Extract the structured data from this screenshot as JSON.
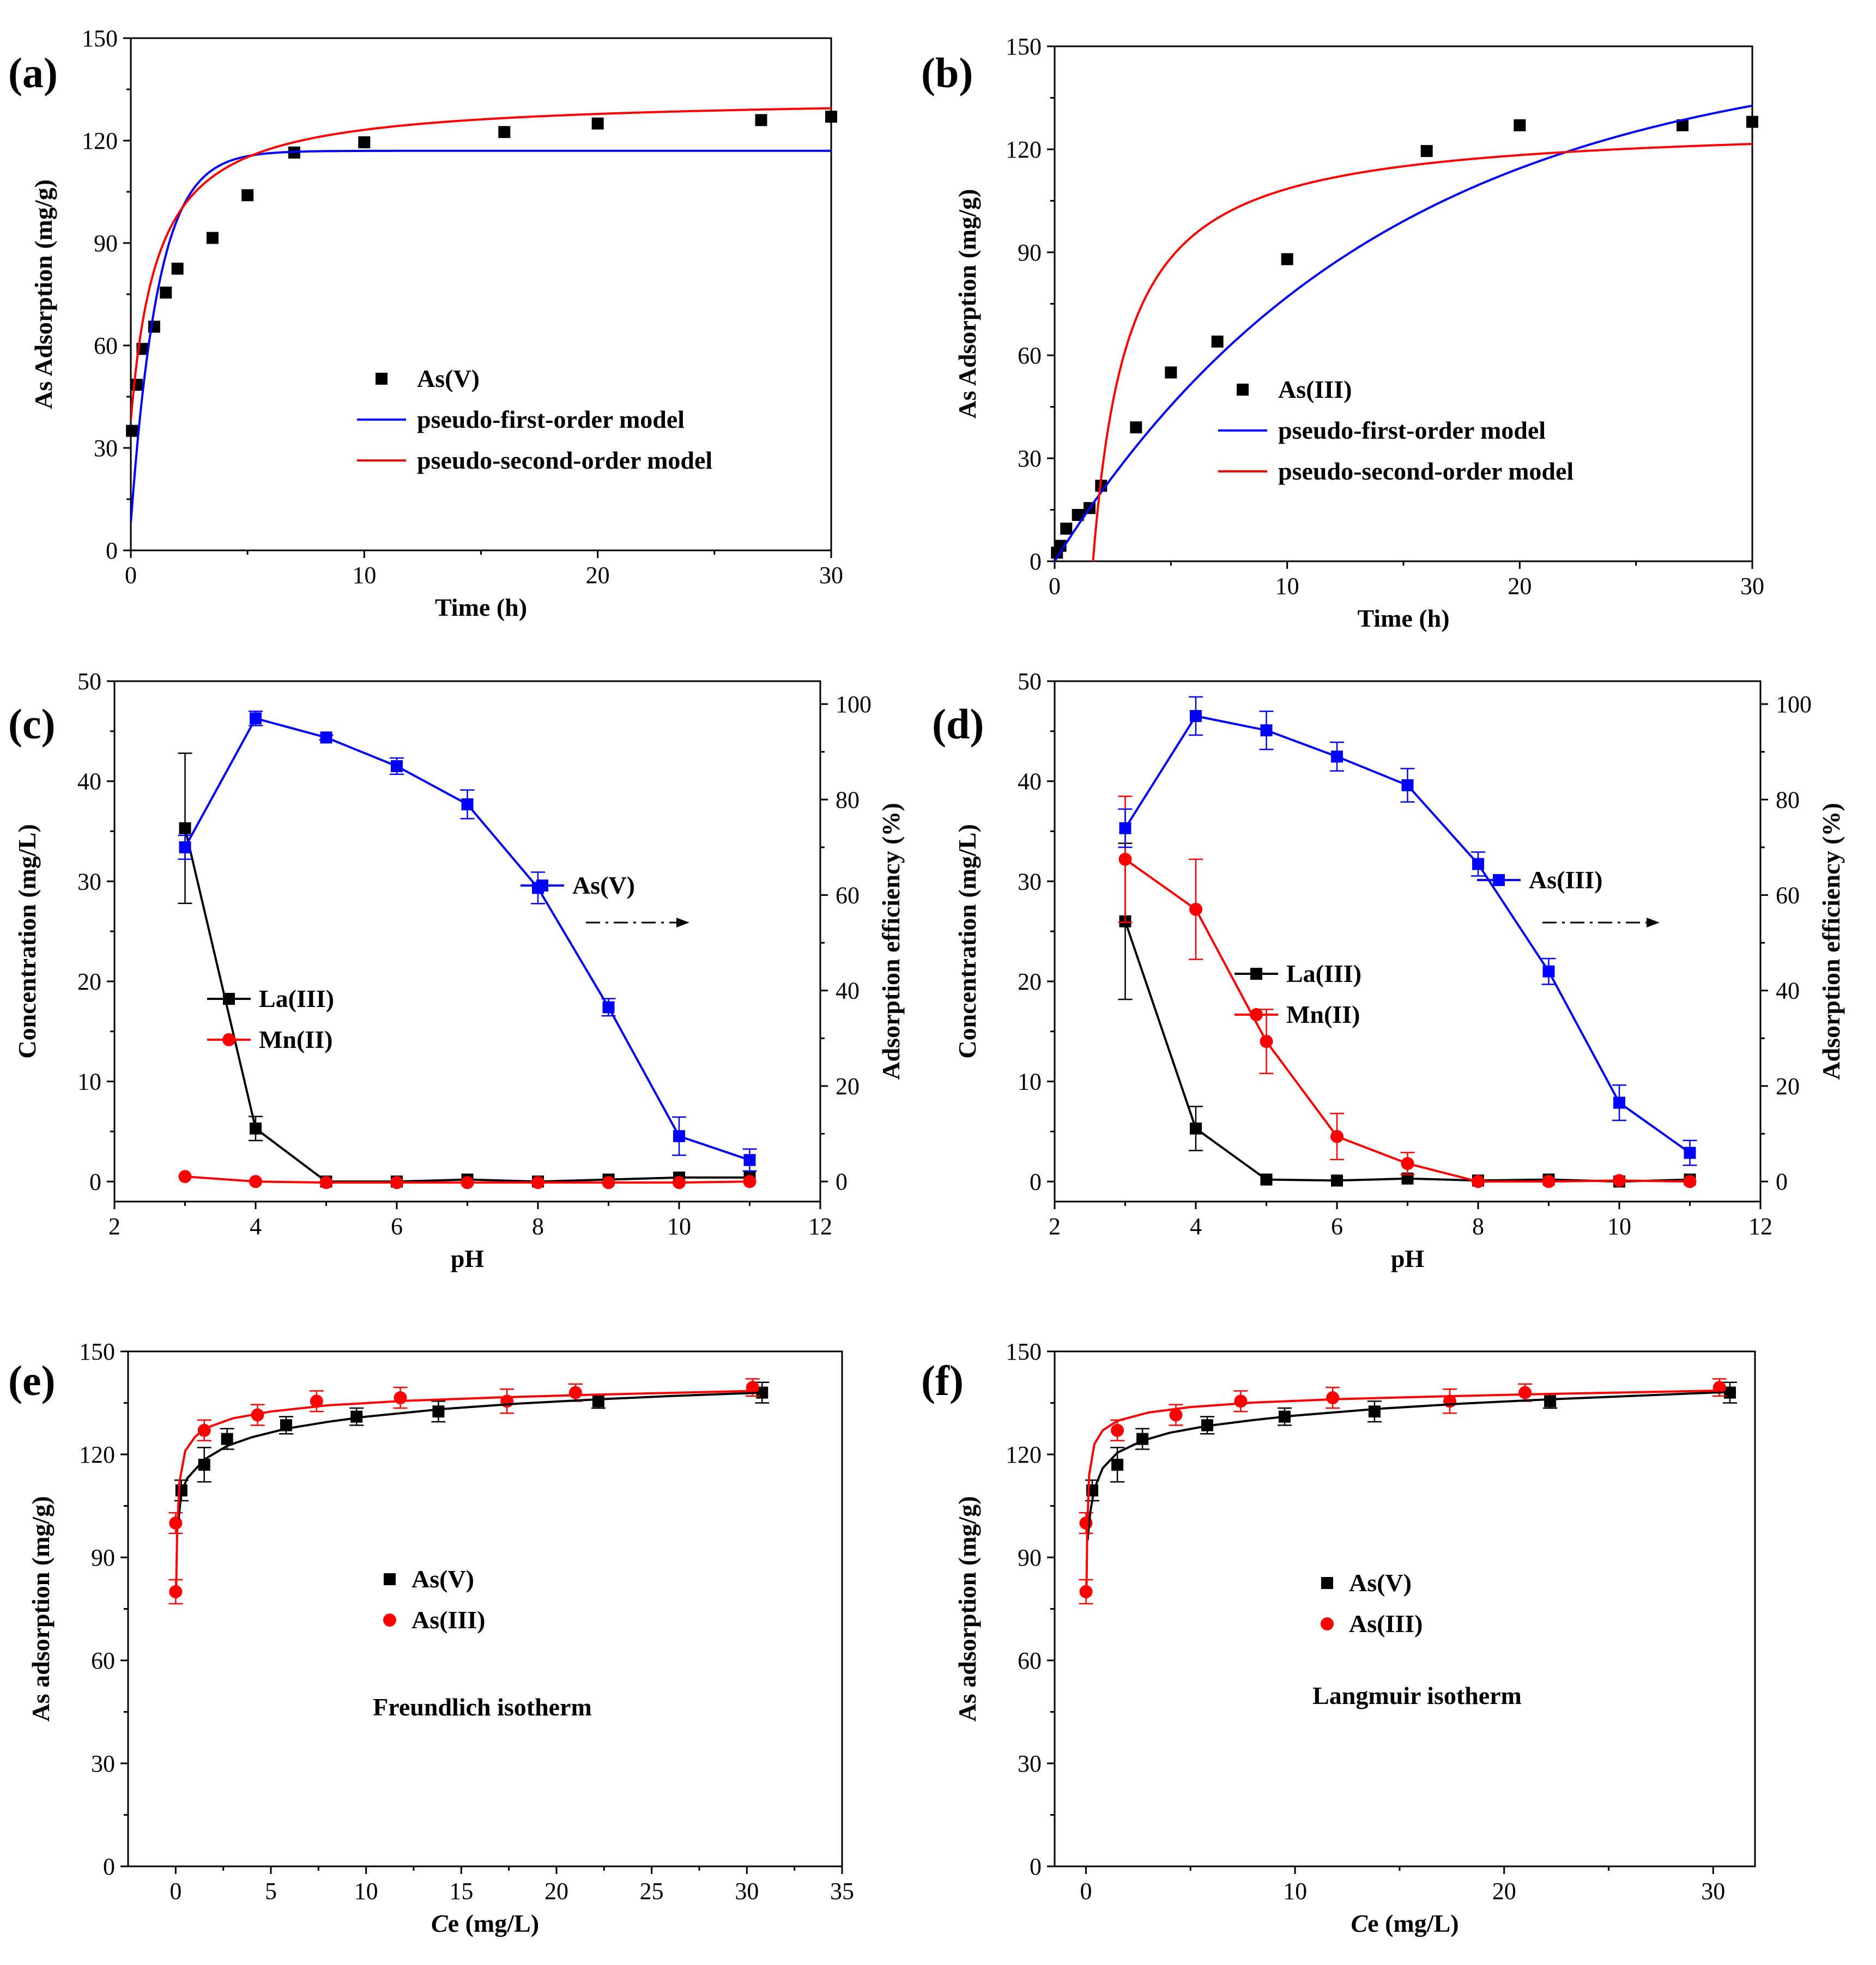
{
  "chart_data": [
    {
      "panel": "(a)",
      "type": "scatter",
      "xlabel": "Time (h)",
      "ylabel": "As Adsorption (mg/g)",
      "xlim": [
        0,
        30
      ],
      "ylim": [
        0,
        150
      ],
      "xticks": [
        0,
        10,
        20,
        30
      ],
      "yticks": [
        0,
        30,
        60,
        90,
        120,
        150
      ],
      "legend_position": "center-right",
      "series": [
        {
          "name": "As(V)",
          "kind": "points",
          "marker": "square",
          "color": "#000000",
          "x": [
            0.05,
            0.25,
            0.5,
            1,
            1.5,
            2,
            3.5,
            5,
            7,
            10,
            16,
            20,
            27,
            30
          ],
          "y": [
            35,
            48.5,
            59,
            65.5,
            75.5,
            82.5,
            91.5,
            104,
            116.5,
            119.5,
            122.5,
            125,
            126,
            127
          ]
        },
        {
          "name": "pseudo-first-order model",
          "kind": "model",
          "color": "#0000ff",
          "model": "pfo",
          "params": {
            "qe": 117,
            "k": 0.85,
            "c": 8
          },
          "xrange": [
            0,
            30
          ]
        },
        {
          "name": "pseudo-second-order model",
          "kind": "model",
          "color": "#ff0000",
          "model": "pso",
          "params": {
            "qe": 133,
            "k": 0.0065,
            "c": 38
          },
          "xrange": [
            0,
            30
          ]
        }
      ]
    },
    {
      "panel": "(b)",
      "type": "scatter",
      "xlabel": "Time (h)",
      "ylabel": "As Adsorption (mg/g)",
      "xlim": [
        0,
        30
      ],
      "ylim": [
        0,
        150
      ],
      "xticks": [
        0,
        10,
        20,
        30
      ],
      "yticks": [
        0,
        30,
        60,
        90,
        120,
        150
      ],
      "legend_position": "center-right",
      "series": [
        {
          "name": "As(III)",
          "kind": "points",
          "marker": "square",
          "color": "#000000",
          "x": [
            0.1,
            0.25,
            0.5,
            1,
            1.5,
            2,
            3.5,
            5,
            7,
            10,
            16,
            20,
            27,
            30
          ],
          "y": [
            2.5,
            4.5,
            9.5,
            13.5,
            15.5,
            22,
            39,
            55,
            64,
            88,
            119.5,
            127,
            127,
            128
          ]
        },
        {
          "name": "pseudo-first-order model",
          "kind": "model",
          "color": "#0000ff",
          "model": "pfo",
          "params": {
            "qe": 150,
            "k": 0.072,
            "c": 0
          },
          "xrange": [
            0,
            30
          ]
        },
        {
          "name": "pseudo-second-order model",
          "kind": "model",
          "color": "#ff0000",
          "model": "pso_shift",
          "params": {
            "qe": 128,
            "k": 0.0052,
            "t0": 1.65
          },
          "xrange": [
            1.65,
            30
          ]
        }
      ]
    },
    {
      "panel": "(c)",
      "type": "line",
      "xlabel": "pH",
      "ylabel": "Concentration (mg/L)",
      "y2label": "Adsorption efficiency (%)",
      "xlim": [
        2,
        12
      ],
      "ylim": [
        -2,
        50
      ],
      "y2lim": [
        -4.2,
        104.8
      ],
      "xticks": [
        2,
        4,
        6,
        8,
        10,
        12
      ],
      "yticks": [
        0,
        10,
        20,
        30,
        40,
        50
      ],
      "y2ticks": [
        0,
        20,
        40,
        60,
        80,
        100
      ],
      "series": [
        {
          "name": "La(III)",
          "marker": "square",
          "color": "#000000",
          "axis": "left",
          "x": [
            3,
            4,
            5,
            6,
            7,
            8,
            9,
            10,
            11
          ],
          "y": [
            35.3,
            5.3,
            0,
            0,
            0.2,
            0,
            0.2,
            0.4,
            0.4
          ],
          "err": [
            7.5,
            1.2,
            0,
            0,
            0,
            0,
            0,
            0,
            0
          ]
        },
        {
          "name": "Mn(II)",
          "marker": "circle",
          "color": "#ff0000",
          "axis": "left",
          "x": [
            3,
            4,
            5,
            6,
            7,
            8,
            9,
            10,
            11
          ],
          "y": [
            0.5,
            0,
            -0.1,
            -0.1,
            -0.1,
            -0.1,
            -0.1,
            -0.1,
            0
          ],
          "err": [
            0,
            0,
            0,
            0,
            0,
            0,
            0,
            0,
            0
          ]
        },
        {
          "name": "As(V)",
          "marker": "square",
          "color": "#0000ff",
          "axis": "right",
          "x": [
            3,
            4,
            5,
            6,
            7,
            8,
            9,
            10,
            11
          ],
          "y": [
            70,
            97,
            93,
            87,
            79,
            61.5,
            36.5,
            9.5,
            4.5
          ],
          "err": [
            2.5,
            1.5,
            0.5,
            1.7,
            3,
            3.3,
            1.8,
            4,
            2.3
          ]
        }
      ]
    },
    {
      "panel": "(d)",
      "type": "line",
      "xlabel": "pH",
      "ylabel": "Concentration (mg/L)",
      "y2label": "Adsorption efficiency (%)",
      "xlim": [
        2,
        12
      ],
      "ylim": [
        -2,
        50
      ],
      "y2lim": [
        -4.2,
        104.8
      ],
      "xticks": [
        2,
        4,
        6,
        8,
        10,
        12
      ],
      "yticks": [
        0,
        10,
        20,
        30,
        40,
        50
      ],
      "y2ticks": [
        0,
        20,
        40,
        60,
        80,
        100
      ],
      "series": [
        {
          "name": "La(III)",
          "marker": "square",
          "color": "#000000",
          "axis": "left",
          "x": [
            3,
            4,
            5,
            6,
            7,
            8,
            9,
            10,
            11
          ],
          "y": [
            26,
            5.3,
            0.2,
            0.1,
            0.3,
            0.1,
            0.2,
            0,
            0.2
          ],
          "err": [
            7.8,
            2.2,
            0,
            0,
            0,
            0,
            0,
            0,
            0
          ]
        },
        {
          "name": "Mn(II)",
          "marker": "circle",
          "color": "#ff0000",
          "axis": "left",
          "x": [
            3,
            4,
            5,
            6,
            7,
            8,
            9,
            10,
            11
          ],
          "y": [
            32.2,
            27.2,
            14,
            4.5,
            1.8,
            0,
            0,
            0.1,
            0
          ],
          "err": [
            6.3,
            5,
            3.2,
            2.3,
            1.1,
            0,
            0,
            0,
            0
          ]
        },
        {
          "name": "As(III)",
          "marker": "square",
          "color": "#0000ff",
          "axis": "right",
          "x": [
            3,
            4,
            5,
            6,
            7,
            8,
            9,
            10,
            11
          ],
          "y": [
            74,
            97.5,
            94.5,
            89,
            83,
            66.5,
            44,
            16.5,
            6
          ],
          "err": [
            4,
            4,
            4,
            3,
            3.5,
            2.5,
            2.7,
            3.7,
            2.6
          ]
        }
      ]
    },
    {
      "panel": "(e)",
      "type": "scatter",
      "xlabel": "Ce (mg/L)",
      "ylabel": "As adsorption (mg/g)",
      "annotation": "Freundlich isotherm",
      "xlim": [
        -2.5,
        35
      ],
      "ylim": [
        0,
        150
      ],
      "xticks": [
        0,
        5,
        10,
        15,
        20,
        25,
        30,
        35
      ],
      "yticks": [
        0,
        30,
        60,
        90,
        120,
        150
      ],
      "series": [
        {
          "name": "As(V)",
          "marker": "square",
          "color": "#000000",
          "x": [
            0.3,
            1.5,
            2.7,
            5.8,
            9.5,
            13.8,
            22.2,
            30.8
          ],
          "y": [
            109.5,
            117,
            124.5,
            128.5,
            131,
            132.5,
            135.5,
            138
          ],
          "err": [
            3,
            5,
            3,
            2.5,
            2.5,
            3,
            2,
            3
          ]
        },
        {
          "name": "As(III)",
          "marker": "circle",
          "color": "#ff0000",
          "x": [
            0,
            0,
            1.5,
            4.3,
            7.4,
            11.8,
            17.4,
            21,
            30.3
          ],
          "y": [
            80,
            100,
            127,
            131.5,
            135.5,
            136.5,
            135.5,
            138,
            139.5
          ],
          "err": [
            3.5,
            3,
            3,
            3,
            3,
            3,
            3.5,
            2.5,
            2.5
          ]
        },
        {
          "name": "As(V) fit",
          "kind": "fit",
          "color": "#000000",
          "curve": [
            [
              0.15,
              101
            ],
            [
              0.3,
              109
            ],
            [
              0.6,
              113
            ],
            [
              1.5,
              118.5
            ],
            [
              2.7,
              122.5
            ],
            [
              4,
              125
            ],
            [
              5.8,
              127.5
            ],
            [
              8,
              129.5
            ],
            [
              10,
              131
            ],
            [
              14,
              133.2
            ],
            [
              18,
              134.8
            ],
            [
              22,
              136
            ],
            [
              26,
              137
            ],
            [
              30.8,
              138
            ]
          ]
        },
        {
          "name": "As(III) fit",
          "kind": "fit",
          "color": "#ff0000",
          "curve": [
            [
              0.02,
              78
            ],
            [
              0.08,
              98
            ],
            [
              0.2,
              112
            ],
            [
              0.5,
              121
            ],
            [
              1,
              125
            ],
            [
              1.5,
              127.5
            ],
            [
              3,
              130.5
            ],
            [
              5,
              132.5
            ],
            [
              8,
              134.3
            ],
            [
              12,
              135.6
            ],
            [
              17,
              136.6
            ],
            [
              22,
              137.4
            ],
            [
              30.5,
              138.5
            ]
          ]
        }
      ]
    },
    {
      "panel": "(f)",
      "type": "scatter",
      "xlabel": "Ce (mg/L)",
      "ylabel": "As adsorption (mg/g)",
      "annotation": "Langmuir isotherm",
      "xlim": [
        -1.5,
        32
      ],
      "ylim": [
        0,
        150
      ],
      "xticks": [
        0,
        10,
        20,
        30
      ],
      "yticks": [
        0,
        30,
        60,
        90,
        120,
        150
      ],
      "series": [
        {
          "name": "As(V)",
          "marker": "square",
          "color": "#000000",
          "x": [
            0.3,
            1.5,
            2.7,
            5.8,
            9.5,
            13.8,
            22.2,
            30.8
          ],
          "y": [
            109.5,
            117,
            124.5,
            128.5,
            131,
            132.5,
            135.5,
            138
          ],
          "err": [
            3,
            5,
            3,
            2.5,
            2.5,
            3,
            2,
            3
          ]
        },
        {
          "name": "As(III)",
          "marker": "circle",
          "color": "#ff0000",
          "x": [
            0,
            0,
            1.5,
            4.3,
            7.4,
            11.8,
            17.4,
            21,
            30.3
          ],
          "y": [
            80,
            100,
            127,
            131.5,
            135.5,
            136.5,
            135.5,
            138,
            139.5
          ],
          "err": [
            3.5,
            3,
            3,
            3,
            3,
            3,
            3.5,
            2.5,
            2.5
          ]
        },
        {
          "name": "As(V) fit",
          "kind": "fit",
          "color": "#000000",
          "curve": [
            [
              0.08,
              95
            ],
            [
              0.2,
              103
            ],
            [
              0.4,
              110
            ],
            [
              0.8,
              116
            ],
            [
              1.5,
              120.5
            ],
            [
              2.7,
              124
            ],
            [
              4,
              126.3
            ],
            [
              5.8,
              128.3
            ],
            [
              8,
              130
            ],
            [
              10,
              131.3
            ],
            [
              14,
              133.3
            ],
            [
              18,
              134.8
            ],
            [
              22,
              136
            ],
            [
              26,
              137
            ],
            [
              30.8,
              138.2
            ]
          ]
        },
        {
          "name": "As(III) fit",
          "kind": "fit",
          "color": "#ff0000",
          "curve": [
            [
              0.02,
              78
            ],
            [
              0.06,
              98
            ],
            [
              0.15,
              114
            ],
            [
              0.4,
              123
            ],
            [
              0.8,
              127
            ],
            [
              1.5,
              129.8
            ],
            [
              3,
              132.2
            ],
            [
              5,
              133.8
            ],
            [
              8,
              135.1
            ],
            [
              12,
              136.1
            ],
            [
              17,
              136.9
            ],
            [
              22,
              137.6
            ],
            [
              30.5,
              138.6
            ]
          ]
        }
      ]
    }
  ],
  "labels": {
    "panel_a": "(a)",
    "panel_b": "(b)",
    "panel_c": "(c)",
    "panel_d": "(d)",
    "panel_e": "(e)",
    "panel_f": "(f)",
    "legend_c_asv": "As(V)",
    "legend_d_asiii": "As(III)"
  }
}
